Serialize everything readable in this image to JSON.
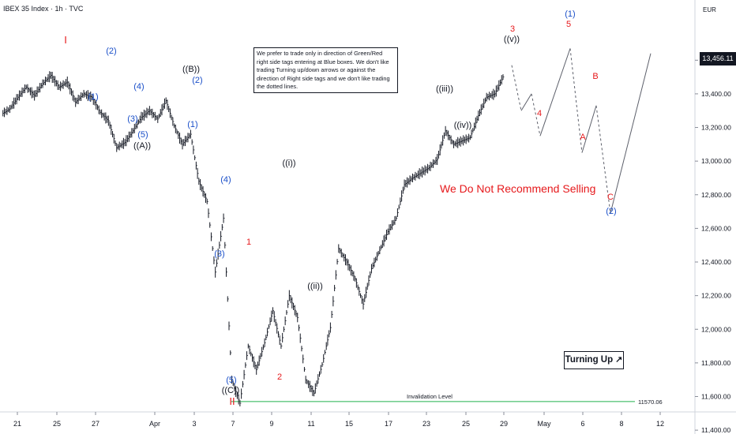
{
  "header": {
    "title": "IBEX 35 Index · 1h · TVC",
    "currency": "EUR"
  },
  "note_text": "We prefer to trade only in direction of Green/Red right side tags entering at Blue boxes. We don't like trading Turning up/down arrows or against the direction of Right side tags and we don't like trading the dotted lines.",
  "turning_label": "Turning Up",
  "turning_arrow": "↗",
  "recommendation": "We Do Not Recommend Selling",
  "colors": {
    "red": "#e6191c",
    "blue": "#1a4fc9",
    "black": "#131722",
    "green": "#22b14c"
  },
  "chart_data": {
    "type": "line",
    "x_tick_labels": [
      "21",
      "25",
      "27",
      "Apr",
      "3",
      "7",
      "9",
      "11",
      "15",
      "17",
      "23",
      "25",
      "29",
      "May",
      "6",
      "8",
      "12"
    ],
    "y_ticks": [
      11400,
      11600,
      11800,
      12000,
      12200,
      12400,
      12600,
      12800,
      13000,
      13200,
      13400,
      13600
    ],
    "y_tick_labels": [
      "11,400.00",
      "11,600.00",
      "11,800.00",
      "12,000.00",
      "12,200.00",
      "12,400.00",
      "12,600.00",
      "12,800.00",
      "13,000.00",
      "13,200.00",
      "13,400.00",
      "13,600.00"
    ],
    "ylim": [
      11330,
      13790
    ],
    "current_price": "13,456.11",
    "invalidation": {
      "label": "Invalidation Level",
      "value_label": "11570.06",
      "value": 11570.06
    },
    "series": [
      {
        "style": "bars",
        "points": [
          [
            0,
            13280
          ],
          [
            1,
            13310
          ],
          [
            2,
            13380
          ],
          [
            3,
            13440
          ],
          [
            4,
            13390
          ],
          [
            5,
            13460
          ],
          [
            6,
            13510
          ],
          [
            7,
            13440
          ],
          [
            8,
            13470
          ],
          [
            9,
            13350
          ],
          [
            10,
            13400
          ],
          [
            11,
            13380
          ],
          [
            12,
            13290
          ],
          [
            13,
            13240
          ],
          [
            14,
            13080
          ],
          [
            15,
            13110
          ],
          [
            16,
            13180
          ],
          [
            17,
            13260
          ],
          [
            18,
            13300
          ],
          [
            19,
            13250
          ],
          [
            20,
            13360
          ],
          [
            21,
            13210
          ],
          [
            22,
            13100
          ],
          [
            23,
            13160
          ],
          [
            24,
            12880
          ],
          [
            25,
            12760
          ],
          [
            26,
            12340
          ],
          [
            27,
            12660
          ],
          [
            28,
            11700
          ],
          [
            29,
            11560
          ],
          [
            30,
            11900
          ],
          [
            31,
            11760
          ],
          [
            32,
            11920
          ],
          [
            33,
            12110
          ],
          [
            34,
            11900
          ],
          [
            35,
            12200
          ],
          [
            36,
            12070
          ],
          [
            37,
            11700
          ],
          [
            38,
            11620
          ],
          [
            39,
            11790
          ],
          [
            40,
            12010
          ],
          [
            41,
            12480
          ],
          [
            42,
            12400
          ],
          [
            43,
            12300
          ],
          [
            44,
            12150
          ],
          [
            45,
            12360
          ],
          [
            46,
            12470
          ],
          [
            47,
            12580
          ],
          [
            48,
            12660
          ],
          [
            49,
            12860
          ],
          [
            50,
            12900
          ],
          [
            51,
            12930
          ],
          [
            52,
            12960
          ],
          [
            53,
            13010
          ],
          [
            54,
            13180
          ],
          [
            55,
            13100
          ],
          [
            56,
            13120
          ],
          [
            57,
            13140
          ],
          [
            58,
            13270
          ],
          [
            59,
            13380
          ],
          [
            60,
            13400
          ],
          [
            61,
            13500
          ]
        ]
      },
      {
        "style": "projection",
        "points": [
          [
            "v",
            13570
          ],
          [
            "d1",
            13300
          ],
          [
            "d2",
            13400
          ],
          [
            "4",
            13150
          ],
          [
            "5",
            13670
          ],
          [
            "A",
            13050
          ],
          [
            "B",
            13330
          ],
          [
            "C",
            12690
          ],
          [
            "end",
            13640
          ]
        ]
      }
    ]
  },
  "wave_labels": [
    {
      "text": "I",
      "color": "red"
    },
    {
      "text": "(2)",
      "color": "blue"
    },
    {
      "text": "((B))",
      "color": "black"
    },
    {
      "text": "(2)",
      "color": "blue"
    },
    {
      "text": "(1)",
      "color": "blue"
    },
    {
      "text": "(4)",
      "color": "blue"
    },
    {
      "text": "(3)",
      "color": "blue"
    },
    {
      "text": "(5)",
      "color": "blue"
    },
    {
      "text": "((A))",
      "color": "black"
    },
    {
      "text": "(1)",
      "color": "blue"
    },
    {
      "text": "(4)",
      "color": "blue"
    },
    {
      "text": "(3)",
      "color": "blue"
    },
    {
      "text": "1",
      "color": "red"
    },
    {
      "text": "((i))",
      "color": "black"
    },
    {
      "text": "((ii))",
      "color": "black"
    },
    {
      "text": "(5)",
      "color": "blue"
    },
    {
      "text": "((C))",
      "color": "black"
    },
    {
      "text": "II",
      "color": "red"
    },
    {
      "text": "2",
      "color": "red"
    },
    {
      "text": "((iii))",
      "color": "black"
    },
    {
      "text": "((iv))",
      "color": "black"
    },
    {
      "text": "3",
      "color": "red"
    },
    {
      "text": "((v))",
      "color": "black"
    },
    {
      "text": "(1)",
      "color": "blue"
    },
    {
      "text": "5",
      "color": "red"
    },
    {
      "text": "4",
      "color": "red"
    },
    {
      "text": "B",
      "color": "red"
    },
    {
      "text": "A",
      "color": "red"
    },
    {
      "text": "C",
      "color": "red"
    },
    {
      "text": "(2)",
      "color": "blue"
    }
  ]
}
